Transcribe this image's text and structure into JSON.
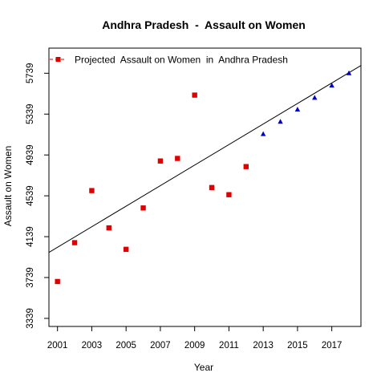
{
  "chart_data": {
    "type": "scatter",
    "title": "Andhra Pradesh  -  Assault on Women",
    "xlabel": "Year",
    "ylabel": "Assault on Women",
    "xlim": [
      2000.5,
      2018.7
    ],
    "ylim": [
      3260,
      5985
    ],
    "x_ticks": [
      2001,
      2003,
      2005,
      2007,
      2009,
      2011,
      2013,
      2015,
      2017
    ],
    "y_ticks": [
      3339,
      3739,
      4139,
      4539,
      4939,
      5339,
      5739
    ],
    "grid": false,
    "legend_position": "top-left",
    "series": [
      {
        "name": "Projected  Assault on Women  in  Andhra Pradesh",
        "kind": "observed",
        "marker": "square",
        "color": "#e00000",
        "points": [
          {
            "x": 2001,
            "y": 3700
          },
          {
            "x": 2002,
            "y": 4080
          },
          {
            "x": 2003,
            "y": 4590
          },
          {
            "x": 2004,
            "y": 4225
          },
          {
            "x": 2005,
            "y": 4015
          },
          {
            "x": 2006,
            "y": 4420
          },
          {
            "x": 2007,
            "y": 4880
          },
          {
            "x": 2008,
            "y": 4905
          },
          {
            "x": 2009,
            "y": 5525
          },
          {
            "x": 2010,
            "y": 4620
          },
          {
            "x": 2011,
            "y": 4550
          },
          {
            "x": 2012,
            "y": 4825
          }
        ]
      },
      {
        "kind": "projected",
        "marker": "triangle",
        "color": "#0000cc",
        "points": [
          {
            "x": 2013,
            "y": 5145
          },
          {
            "x": 2014,
            "y": 5265
          },
          {
            "x": 2015,
            "y": 5385
          },
          {
            "x": 2016,
            "y": 5500
          },
          {
            "x": 2017,
            "y": 5620
          },
          {
            "x": 2018,
            "y": 5740
          }
        ]
      },
      {
        "kind": "trend-line",
        "color": "#000000",
        "points": [
          {
            "x": 2000.5,
            "y": 3985
          },
          {
            "x": 2018.7,
            "y": 5815
          }
        ]
      }
    ]
  }
}
